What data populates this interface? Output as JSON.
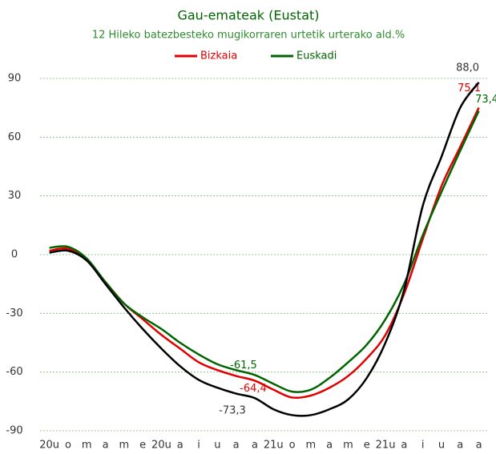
{
  "chart_data": {
    "type": "line",
    "title": "Gau-emateak (Eustat)",
    "subtitle": "12 Hileko batezbesteko mugikorraren urtetik urterako ald.%",
    "categories": [
      "20u",
      "o",
      "m",
      "a",
      "m",
      "e",
      "20u",
      "a",
      "i",
      "u",
      "a",
      "a",
      "21u",
      "o",
      "m",
      "a",
      "m",
      "e",
      "21u",
      "a",
      "i",
      "u",
      "a",
      "a"
    ],
    "series": [
      {
        "name": "Bizkaia",
        "color": "#e00000",
        "values": [
          2,
          3,
          -3,
          -14,
          -25,
          -33,
          -41,
          -48,
          -55,
          -59,
          -62,
          -64.4,
          -69,
          -73,
          -72,
          -68,
          -62,
          -53,
          -41,
          -20,
          8,
          35,
          55,
          75.1
        ],
        "value_labels": [
          null,
          null,
          null,
          null,
          null,
          null,
          null,
          null,
          null,
          null,
          null,
          "-64,4",
          null,
          null,
          null,
          null,
          null,
          null,
          null,
          null,
          null,
          null,
          null,
          "75,1"
        ]
      },
      {
        "name": "Euskadi",
        "color": "#006400",
        "values": [
          3.5,
          4,
          -2,
          -14,
          -25,
          -32,
          -38,
          -45,
          -51,
          -56,
          -59,
          -61.5,
          -66,
          -70,
          -69,
          -63,
          -55,
          -46,
          -33,
          -15,
          10,
          32,
          53,
          73.4
        ],
        "value_labels": [
          null,
          null,
          null,
          null,
          null,
          null,
          null,
          null,
          null,
          null,
          null,
          "-61,5",
          null,
          null,
          null,
          null,
          null,
          null,
          null,
          null,
          null,
          null,
          null,
          "73,4"
        ]
      },
      {
        "color": "#000000",
        "values": [
          1,
          2,
          -3,
          -15,
          -27,
          -38,
          -48,
          -57,
          -64,
          -68,
          -71,
          -73.3,
          -79,
          -82,
          -82,
          -79,
          -74,
          -63,
          -45,
          -18,
          25,
          50,
          75,
          88.0
        ],
        "value_labels": [
          null,
          null,
          null,
          null,
          null,
          null,
          null,
          null,
          null,
          null,
          null,
          "-73,3",
          null,
          null,
          null,
          null,
          null,
          null,
          null,
          null,
          null,
          null,
          null,
          "88,0"
        ]
      }
    ],
    "ylim": [
      -90,
      90
    ],
    "yticks": [
      -90,
      -60,
      -30,
      0,
      30,
      60,
      90
    ],
    "grid": true,
    "legend": "top"
  }
}
